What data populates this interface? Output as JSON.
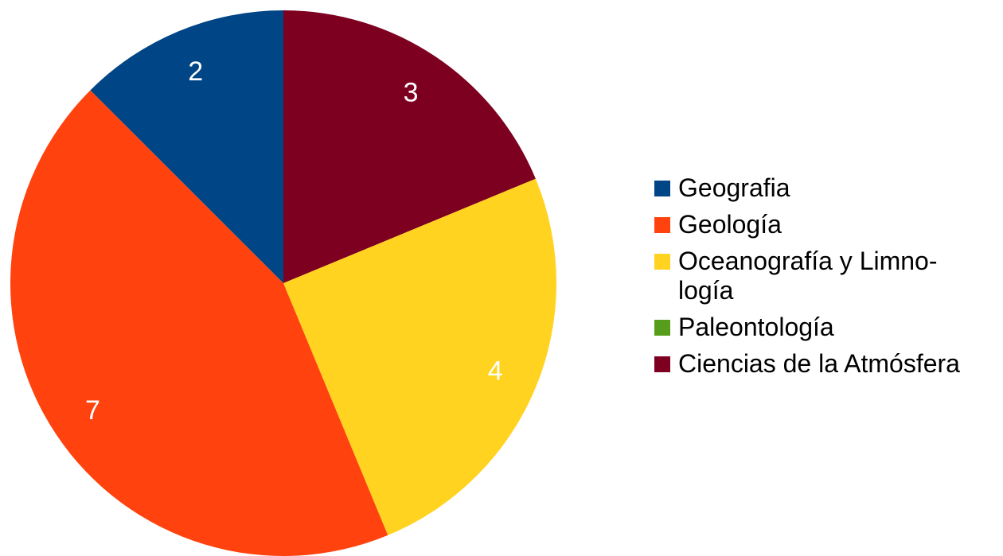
{
  "chart_data": {
    "type": "pie",
    "categories": [
      "Geografia",
      "Geología",
      "Oceanografía y Limno-\nlogía",
      "Paleontología",
      "Ciencias de la Atmósfera"
    ],
    "values": [
      2,
      7,
      4,
      0,
      3
    ],
    "colors": [
      "#004586",
      "#ff420e",
      "#ffd320",
      "#579d1c",
      "#7e0021"
    ],
    "data_labels": [
      "2",
      "7",
      "4",
      "",
      "3"
    ],
    "slice_order": [
      4,
      2,
      1,
      0
    ],
    "start_angle": "12 o'clock, clockwise",
    "legend_position": "right"
  }
}
